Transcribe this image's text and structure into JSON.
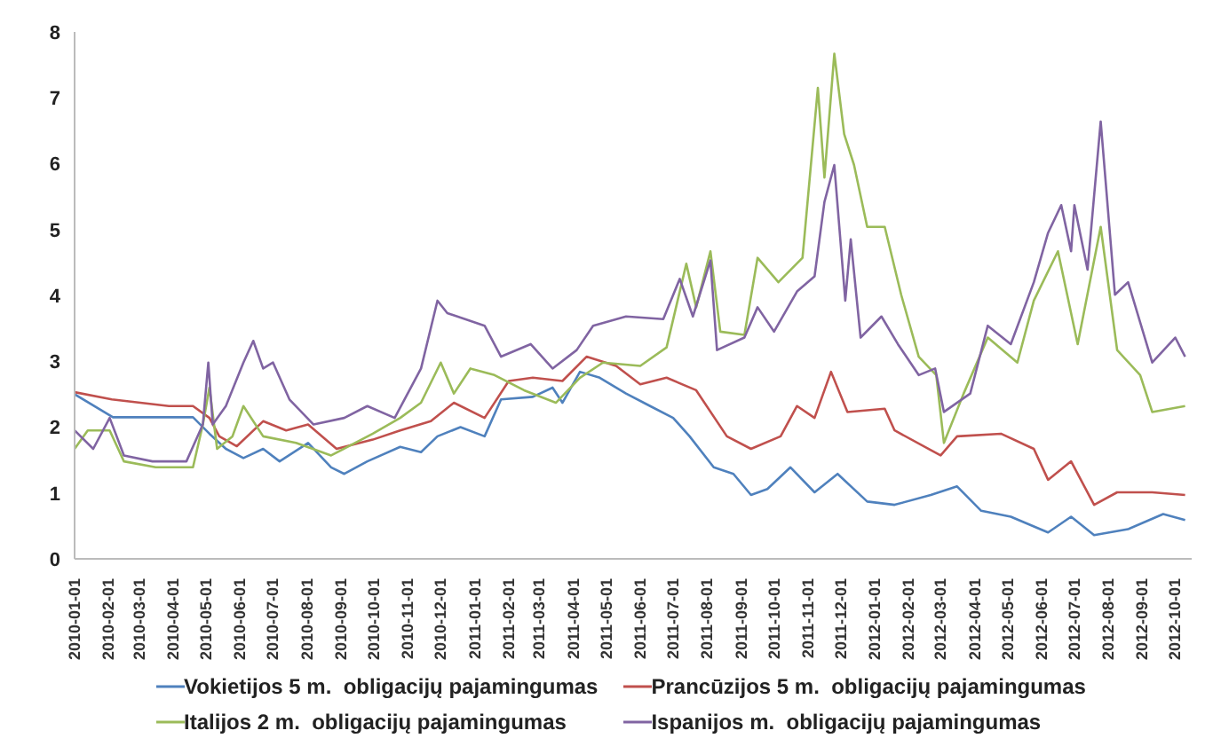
{
  "chart_data": {
    "type": "line",
    "xlim": [
      "2010-01-01",
      "2012-10-16"
    ],
    "ylim": [
      0,
      8
    ],
    "yticks": [
      0,
      1,
      2,
      3,
      4,
      5,
      6,
      7,
      8
    ],
    "xticks": [
      "2010-01-01",
      "2010-02-01",
      "2010-03-01",
      "2010-04-01",
      "2010-05-01",
      "2010-06-01",
      "2010-07-01",
      "2010-08-01",
      "2010-09-01",
      "2010-10-01",
      "2010-11-01",
      "2010-12-01",
      "2011-01-01",
      "2011-02-01",
      "2011-03-01",
      "2011-04-01",
      "2011-05-01",
      "2011-06-01",
      "2011-07-01",
      "2011-08-01",
      "2011-09-01",
      "2011-10-01",
      "2011-11-01",
      "2011-12-01",
      "2012-01-01",
      "2012-02-01",
      "2012-03-01",
      "2012-04-01",
      "2012-05-01",
      "2012-06-01",
      "2012-07-01",
      "2012-08-01",
      "2012-09-01",
      "2012-10-01"
    ],
    "legend": "bottom",
    "marker": "none",
    "line_style": "solid",
    "series": [
      {
        "name": "Vokietijos 5 m.  obligacijų pajamingumas",
        "color": "#4f81bd",
        "x": [
          "2010-01-01",
          "2010-02-05",
          "2010-04-19",
          "2010-05-04",
          "2010-05-19",
          "2010-06-04",
          "2010-06-22",
          "2010-07-07",
          "2010-08-02",
          "2010-08-23",
          "2010-09-04",
          "2010-09-25",
          "2010-10-25",
          "2010-11-13",
          "2010-11-28",
          "2010-12-19",
          "2011-01-10",
          "2011-01-25",
          "2011-02-23",
          "2011-03-13",
          "2011-03-22",
          "2011-04-07",
          "2011-04-25",
          "2011-05-19",
          "2011-06-10",
          "2011-07-01",
          "2011-07-16",
          "2011-08-07",
          "2011-08-25",
          "2011-09-10",
          "2011-09-25",
          "2011-10-16",
          "2011-11-07",
          "2011-11-28",
          "2011-12-25",
          "2012-01-19",
          "2012-02-21",
          "2012-03-16",
          "2012-04-07",
          "2012-05-04",
          "2012-06-07",
          "2012-06-28",
          "2012-07-19",
          "2012-08-19",
          "2012-09-20",
          "2012-10-10"
        ],
        "values": [
          2.5,
          2.15,
          2.15,
          1.9,
          1.67,
          1.53,
          1.67,
          1.48,
          1.76,
          1.39,
          1.29,
          1.48,
          1.7,
          1.62,
          1.86,
          2.0,
          1.86,
          2.42,
          2.46,
          2.6,
          2.37,
          2.84,
          2.75,
          2.51,
          2.32,
          2.14,
          1.86,
          1.39,
          1.29,
          0.97,
          1.06,
          1.39,
          1.01,
          1.29,
          0.87,
          0.82,
          0.97,
          1.1,
          0.73,
          0.64,
          0.4,
          0.64,
          0.36,
          0.45,
          0.68,
          0.59
        ]
      },
      {
        "name": "Prancūzijos 5 m.  obligacijų pajamingumas",
        "color": "#c0504d",
        "x": [
          "2010-01-01",
          "2010-02-04",
          "2010-03-28",
          "2010-04-19",
          "2010-05-04",
          "2010-05-13",
          "2010-05-29",
          "2010-06-22",
          "2010-07-13",
          "2010-08-02",
          "2010-08-28",
          "2010-09-30",
          "2010-10-25",
          "2010-11-22",
          "2010-12-13",
          "2011-01-10",
          "2011-02-01",
          "2011-02-23",
          "2011-03-22",
          "2011-04-13",
          "2011-05-10",
          "2011-06-01",
          "2011-06-25",
          "2011-07-22",
          "2011-08-19",
          "2011-09-10",
          "2011-10-07",
          "2011-10-22",
          "2011-11-07",
          "2011-11-22",
          "2011-12-07",
          "2012-01-10",
          "2012-01-19",
          "2012-03-01",
          "2012-03-16",
          "2012-04-25",
          "2012-05-25",
          "2012-06-07",
          "2012-06-28",
          "2012-07-19",
          "2012-08-09",
          "2012-09-10",
          "2012-10-10"
        ],
        "values": [
          2.53,
          2.42,
          2.32,
          2.32,
          2.14,
          1.86,
          1.71,
          2.09,
          1.95,
          2.04,
          1.67,
          1.81,
          1.95,
          2.09,
          2.37,
          2.14,
          2.7,
          2.75,
          2.7,
          3.07,
          2.93,
          2.65,
          2.75,
          2.56,
          1.86,
          1.67,
          1.86,
          2.32,
          2.14,
          2.84,
          2.23,
          2.28,
          1.95,
          1.57,
          1.86,
          1.9,
          1.67,
          1.2,
          1.48,
          0.82,
          1.01,
          1.01,
          0.97
        ]
      },
      {
        "name": "Italijos 2 m.  obligacijų pajamingumas",
        "color": "#9bbb59",
        "x": [
          "2010-01-01",
          "2010-01-13",
          "2010-02-02",
          "2010-02-15",
          "2010-03-16",
          "2010-04-19",
          "2010-04-28",
          "2010-05-04",
          "2010-05-11",
          "2010-05-25",
          "2010-06-04",
          "2010-06-22",
          "2010-07-22",
          "2010-08-23",
          "2010-09-30",
          "2010-10-25",
          "2010-11-13",
          "2010-12-01",
          "2010-12-13",
          "2010-12-28",
          "2011-01-19",
          "2011-02-15",
          "2011-03-16",
          "2011-04-07",
          "2011-04-28",
          "2011-06-01",
          "2011-06-25",
          "2011-07-13",
          "2011-07-22",
          "2011-08-04",
          "2011-08-13",
          "2011-09-04",
          "2011-09-16",
          "2011-10-05",
          "2011-10-27",
          "2011-11-10",
          "2011-11-16",
          "2011-11-25",
          "2011-12-04",
          "2011-12-13",
          "2011-12-25",
          "2012-01-10",
          "2012-01-25",
          "2012-02-10",
          "2012-02-26",
          "2012-03-04",
          "2012-03-22",
          "2012-04-13",
          "2012-05-10",
          "2012-05-25",
          "2012-06-16",
          "2012-07-04",
          "2012-07-25",
          "2012-08-09",
          "2012-08-30",
          "2012-09-10",
          "2012-10-10"
        ],
        "values": [
          1.67,
          1.95,
          1.95,
          1.48,
          1.39,
          1.39,
          2.04,
          2.6,
          1.67,
          1.86,
          2.32,
          1.86,
          1.76,
          1.57,
          1.9,
          2.14,
          2.37,
          2.98,
          2.51,
          2.89,
          2.79,
          2.56,
          2.37,
          2.75,
          2.98,
          2.93,
          3.21,
          4.48,
          3.82,
          4.67,
          3.45,
          3.4,
          4.57,
          4.2,
          4.57,
          7.15,
          5.79,
          7.67,
          6.45,
          5.98,
          5.04,
          5.04,
          4.01,
          3.07,
          2.79,
          1.76,
          2.51,
          3.36,
          2.98,
          3.92,
          4.67,
          3.26,
          5.04,
          3.17,
          2.79,
          2.23,
          2.32
        ]
      },
      {
        "name": "Ispanijos m.  obligacijų pajamingumas",
        "color": "#8064a2",
        "x": [
          "2010-01-01",
          "2010-01-18",
          "2010-02-02",
          "2010-02-15",
          "2010-03-13",
          "2010-04-13",
          "2010-04-28",
          "2010-05-03",
          "2010-05-07",
          "2010-05-19",
          "2010-06-04",
          "2010-06-13",
          "2010-06-22",
          "2010-07-01",
          "2010-07-16",
          "2010-08-07",
          "2010-09-04",
          "2010-09-25",
          "2010-10-20",
          "2010-11-13",
          "2010-11-28",
          "2010-12-07",
          "2011-01-10",
          "2011-01-25",
          "2011-02-21",
          "2011-03-13",
          "2011-04-04",
          "2011-04-19",
          "2011-05-19",
          "2011-06-22",
          "2011-07-07",
          "2011-07-19",
          "2011-08-04",
          "2011-08-10",
          "2011-09-04",
          "2011-09-16",
          "2011-10-01",
          "2011-10-22",
          "2011-11-07",
          "2011-11-16",
          "2011-11-25",
          "2011-12-05",
          "2011-12-10",
          "2011-12-19",
          "2012-01-07",
          "2012-01-22",
          "2012-02-10",
          "2012-02-25",
          "2012-03-04",
          "2012-03-28",
          "2012-04-13",
          "2012-05-04",
          "2012-05-25",
          "2012-06-07",
          "2012-06-19",
          "2012-06-28",
          "2012-07-01",
          "2012-07-13",
          "2012-07-25",
          "2012-08-07",
          "2012-08-19",
          "2012-09-10",
          "2012-10-01",
          "2012-10-10"
        ],
        "values": [
          1.95,
          1.67,
          2.14,
          1.57,
          1.48,
          1.48,
          2.04,
          2.98,
          2.04,
          2.32,
          2.98,
          3.31,
          2.89,
          2.98,
          2.42,
          2.04,
          2.14,
          2.32,
          2.14,
          2.89,
          3.92,
          3.73,
          3.54,
          3.07,
          3.26,
          2.89,
          3.17,
          3.54,
          3.68,
          3.64,
          4.25,
          3.68,
          4.53,
          3.17,
          3.36,
          3.82,
          3.45,
          4.06,
          4.29,
          5.42,
          5.98,
          3.92,
          4.85,
          3.36,
          3.68,
          3.26,
          2.79,
          2.89,
          2.23,
          2.51,
          3.54,
          3.26,
          4.2,
          4.95,
          5.37,
          4.67,
          5.37,
          4.39,
          6.64,
          4.01,
          4.2,
          2.98,
          3.36,
          3.07
        ]
      }
    ]
  }
}
